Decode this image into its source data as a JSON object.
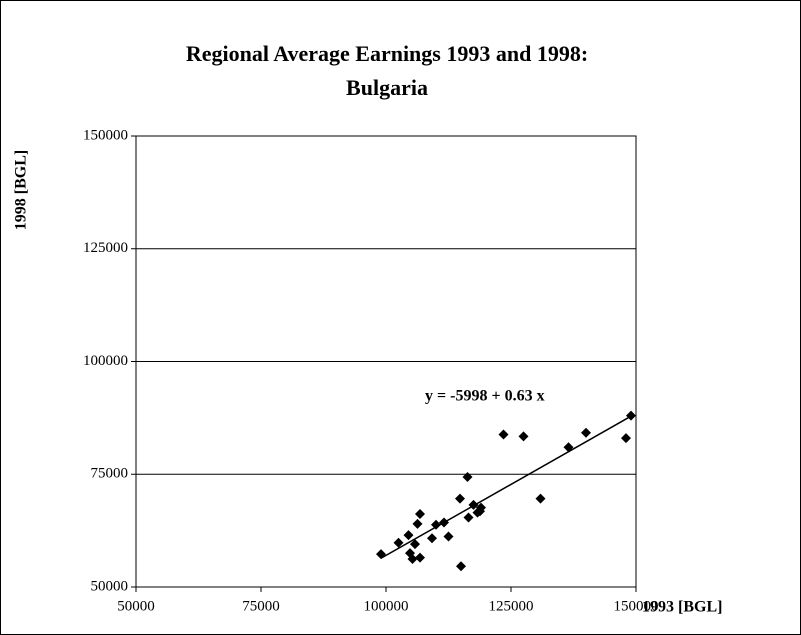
{
  "chart_data": {
    "type": "scatter",
    "title": [
      "Regional Average Earnings 1993 and 1998:",
      "Bulgaria"
    ],
    "x_label": "1993 [BGL]",
    "y_label": "1998 [BGL]",
    "trend_label": "y = -5998 + 0.63 x",
    "trendline": {
      "intercept": -5998,
      "slope": 0.63
    },
    "color": "#000000",
    "grid": true,
    "xlim": [
      50000,
      150000
    ],
    "xticks": [
      50000,
      75000,
      100000,
      125000,
      150000
    ],
    "ylim": [
      50000,
      150000
    ],
    "yticks": [
      50000,
      75000,
      100000,
      125000,
      150000
    ],
    "x": [
      99000,
      102500,
      104500,
      104800,
      105300,
      105800,
      106300,
      106800,
      106800,
      109200,
      110000,
      111600,
      112500,
      114800,
      115000,
      116300,
      116500,
      117500,
      118300,
      119000,
      118800,
      123500,
      127500,
      130900,
      136500,
      140000,
      148000,
      149000
    ],
    "values": [
      57300,
      59800,
      61500,
      57500,
      56200,
      59500,
      64000,
      66200,
      56500,
      60800,
      63800,
      64300,
      61200,
      69600,
      54600,
      74400,
      65400,
      68200,
      66500,
      67600,
      66800,
      83800,
      83400,
      69600,
      81000,
      84200,
      83000,
      88000
    ]
  }
}
